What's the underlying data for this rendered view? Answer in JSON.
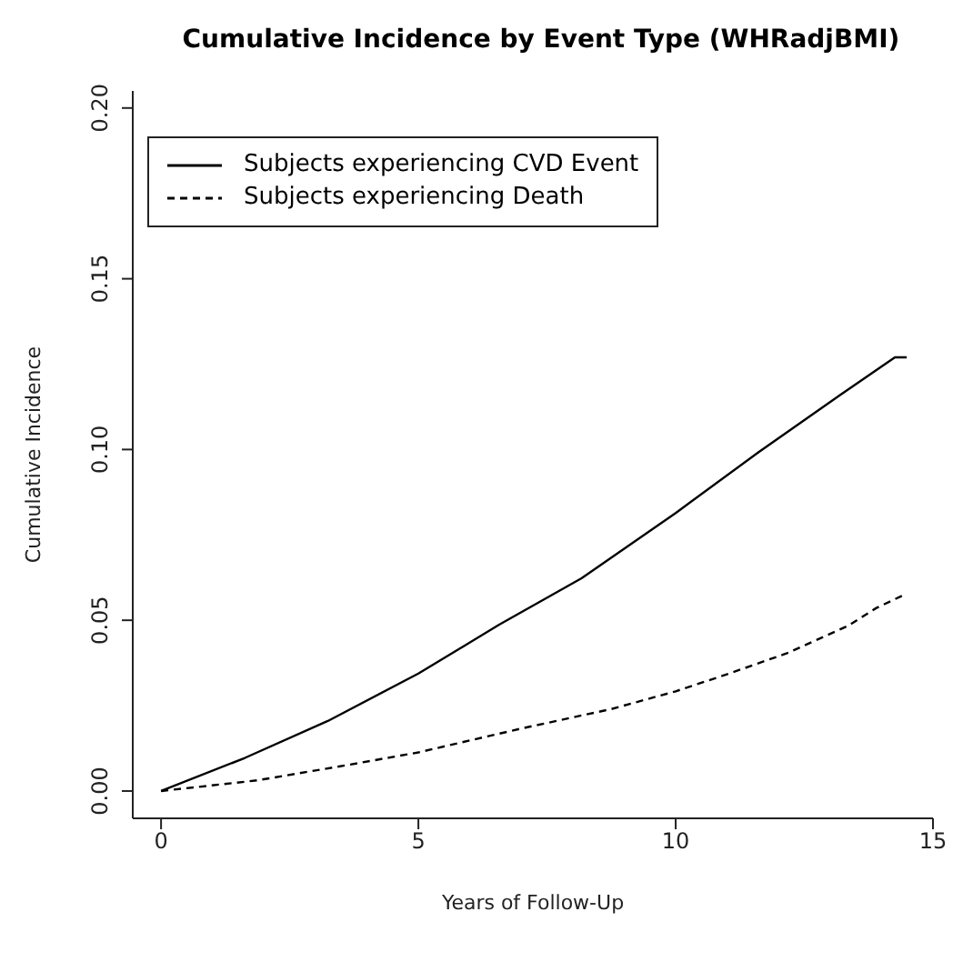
{
  "chart_data": {
    "type": "line",
    "title": "Cumulative Incidence by Event Type (WHRadjBMI)",
    "xlabel": "Years of Follow-Up",
    "ylabel": "Cumulative Incidence",
    "xlim": [
      -0.55,
      15
    ],
    "xticks": [
      0,
      5,
      10,
      15
    ],
    "ylim": [
      -0.008,
      0.205
    ],
    "yticks": [
      {
        "value": 0,
        "label": "0.00"
      },
      {
        "value": 0.05,
        "label": "0.05"
      },
      {
        "value": 0.1,
        "label": "0.10"
      },
      {
        "value": 0.15,
        "label": "0.15"
      },
      {
        "value": 0.2,
        "label": "0.20"
      }
    ],
    "grid": false,
    "legend": "top left",
    "marker": "none",
    "series": [
      {
        "name": "Subjects experiencing CVD Event",
        "color": "#000000",
        "line_style": "solid",
        "x": [
          0,
          1.63,
          3.24,
          5,
          6.57,
          8.17,
          10,
          11.6,
          13.2,
          14.26,
          14.49
        ],
        "values": [
          0,
          0.0097,
          0.0205,
          0.0344,
          0.0487,
          0.0623,
          0.0814,
          0.0991,
          0.116,
          0.127,
          0.127
        ]
      },
      {
        "name": "Subjects experiencing Death",
        "color": "#000000",
        "line_style": "dashed",
        "x": [
          0,
          1.86,
          3.58,
          5,
          7.03,
          8.75,
          10,
          11.04,
          12.19,
          13.34,
          13.9,
          14.43
        ],
        "values": [
          0,
          0.0031,
          0.0075,
          0.0113,
          0.0184,
          0.024,
          0.0292,
          0.0344,
          0.0405,
          0.0483,
          0.0536,
          0.0574
        ]
      }
    ]
  }
}
